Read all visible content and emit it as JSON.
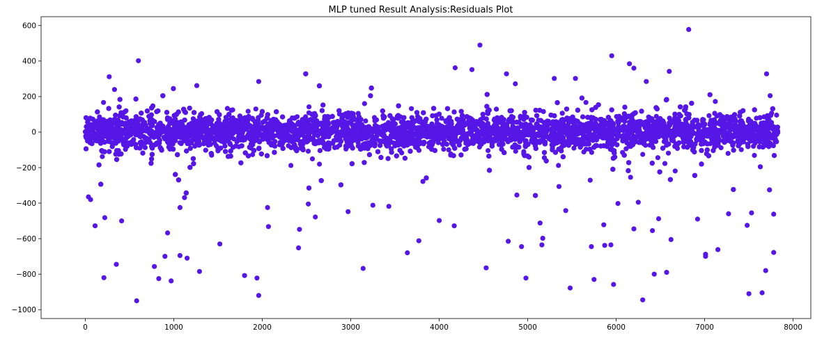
{
  "chart_data": {
    "type": "scatter",
    "title": "MLP tuned Result Analysis:Residuals Plot",
    "xlabel": "",
    "ylabel": "",
    "xlim": [
      -500,
      8200
    ],
    "ylim": [
      -1050,
      650
    ],
    "x_ticks": [
      0,
      1000,
      2000,
      3000,
      4000,
      5000,
      6000,
      7000,
      8000
    ],
    "y_ticks": [
      600,
      400,
      200,
      0,
      -200,
      -400,
      -600,
      -800,
      -1000
    ],
    "x_tick_labels": [
      "0",
      "1000",
      "2000",
      "3000",
      "4000",
      "5000",
      "6000",
      "7000",
      "8000"
    ],
    "y_tick_labels": [
      "600",
      "400",
      "200",
      "0",
      "−200",
      "−400",
      "−600",
      "−800",
      "−1000"
    ],
    "grid": false,
    "legend": false,
    "marker_color": "#5516e6",
    "n_points": 7830,
    "dense_band": {
      "mean": 0,
      "std": 48,
      "x_range": [
        0,
        7830
      ]
    },
    "notable_points": [
      {
        "x": 600,
        "y": 402
      },
      {
        "x": 270,
        "y": 312
      },
      {
        "x": 330,
        "y": 240
      },
      {
        "x": 1260,
        "y": 262
      },
      {
        "x": 1960,
        "y": 285
      },
      {
        "x": 4460,
        "y": 490
      },
      {
        "x": 4180,
        "y": 362
      },
      {
        "x": 4370,
        "y": 352
      },
      {
        "x": 4760,
        "y": 328
      },
      {
        "x": 4860,
        "y": 272
      },
      {
        "x": 5300,
        "y": 302
      },
      {
        "x": 5540,
        "y": 302
      },
      {
        "x": 5950,
        "y": 430
      },
      {
        "x": 6150,
        "y": 385
      },
      {
        "x": 6200,
        "y": 360
      },
      {
        "x": 6340,
        "y": 285
      },
      {
        "x": 6600,
        "y": 342
      },
      {
        "x": 6820,
        "y": 578
      },
      {
        "x": 7700,
        "y": 328
      },
      {
        "x": 7740,
        "y": 205
      },
      {
        "x": 580,
        "y": -950
      },
      {
        "x": 1960,
        "y": -920
      },
      {
        "x": 6300,
        "y": -945
      },
      {
        "x": 7500,
        "y": -910
      },
      {
        "x": 7650,
        "y": -905
      },
      {
        "x": 5480,
        "y": -878
      },
      {
        "x": 5970,
        "y": -858
      },
      {
        "x": 970,
        "y": -838
      },
      {
        "x": 830,
        "y": -825
      },
      {
        "x": 1940,
        "y": -822
      },
      {
        "x": 4980,
        "y": -822
      },
      {
        "x": 5750,
        "y": -830
      },
      {
        "x": 210,
        "y": -820
      },
      {
        "x": 1800,
        "y": -808
      },
      {
        "x": 6430,
        "y": -800
      },
      {
        "x": 7690,
        "y": -780
      },
      {
        "x": 6570,
        "y": -790
      },
      {
        "x": 1290,
        "y": -785
      },
      {
        "x": 3140,
        "y": -768
      },
      {
        "x": 4530,
        "y": -765
      },
      {
        "x": 350,
        "y": -745
      },
      {
        "x": 780,
        "y": -757
      },
      {
        "x": 1150,
        "y": -710
      },
      {
        "x": 900,
        "y": -700
      },
      {
        "x": 1070,
        "y": -695
      },
      {
        "x": 7010,
        "y": -688
      },
      {
        "x": 7010,
        "y": -700
      },
      {
        "x": 7780,
        "y": -678
      },
      {
        "x": 3640,
        "y": -680
      },
      {
        "x": 7150,
        "y": -662
      },
      {
        "x": 2410,
        "y": -652
      },
      {
        "x": 5870,
        "y": -638
      },
      {
        "x": 5940,
        "y": -635
      },
      {
        "x": 5720,
        "y": -645
      },
      {
        "x": 4930,
        "y": -645
      },
      {
        "x": 5160,
        "y": -635
      },
      {
        "x": 1520,
        "y": -630
      },
      {
        "x": 3770,
        "y": -612
      },
      {
        "x": 4780,
        "y": -615
      },
      {
        "x": 6620,
        "y": -605
      },
      {
        "x": 5170,
        "y": -598
      },
      {
        "x": 930,
        "y": -568
      },
      {
        "x": 2420,
        "y": -548
      },
      {
        "x": 6200,
        "y": -545
      },
      {
        "x": 6410,
        "y": -555
      },
      {
        "x": 2070,
        "y": -532
      },
      {
        "x": 4170,
        "y": -528
      },
      {
        "x": 7480,
        "y": -525
      },
      {
        "x": 5860,
        "y": -522
      },
      {
        "x": 110,
        "y": -528
      },
      {
        "x": 5140,
        "y": -512
      },
      {
        "x": 220,
        "y": -482
      },
      {
        "x": 410,
        "y": -500
      },
      {
        "x": 2600,
        "y": -478
      },
      {
        "x": 6480,
        "y": -488
      },
      {
        "x": 4000,
        "y": -498
      },
      {
        "x": 7780,
        "y": -462
      },
      {
        "x": 2060,
        "y": -425
      },
      {
        "x": 1070,
        "y": -425
      },
      {
        "x": 2520,
        "y": -405
      },
      {
        "x": 3250,
        "y": -412
      },
      {
        "x": 3430,
        "y": -418
      },
      {
        "x": 7530,
        "y": -455
      },
      {
        "x": 6920,
        "y": -490
      },
      {
        "x": 5430,
        "y": -442
      },
      {
        "x": 7270,
        "y": -460
      },
      {
        "x": 60,
        "y": -380
      },
      {
        "x": 35,
        "y": -365
      },
      {
        "x": 2970,
        "y": -448
      },
      {
        "x": 6020,
        "y": -402
      },
      {
        "x": 6250,
        "y": -395
      }
    ]
  }
}
